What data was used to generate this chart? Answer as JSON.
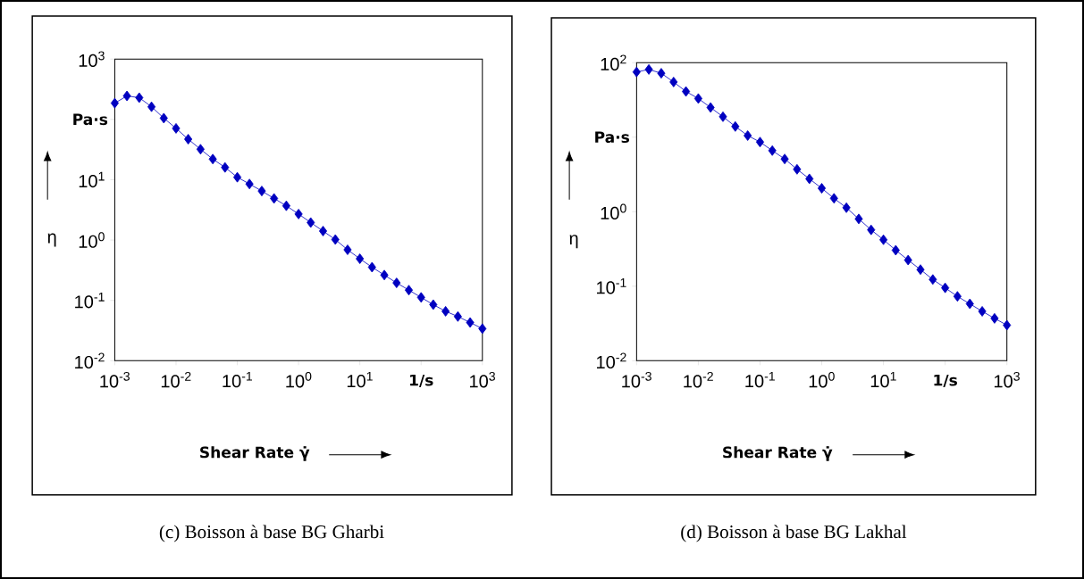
{
  "chart_data": [
    {
      "type": "line",
      "title": "(c) Boisson à base BG Gharbi",
      "xlabel": "Shear Rate γ̇",
      "ylabel": "η",
      "log": "xy",
      "marker": "diamond",
      "color": "#0000c0",
      "x": [
        0.001,
        0.00158,
        0.00251,
        0.00398,
        0.00631,
        0.01,
        0.0158,
        0.0251,
        0.0398,
        0.0631,
        0.1,
        0.158,
        0.251,
        0.398,
        0.631,
        1,
        1.58,
        2.51,
        3.98,
        6.31,
        10,
        15.8,
        25.1,
        39.8,
        63.1,
        100,
        158,
        251,
        398,
        631,
        1000
      ],
      "values": [
        186,
        245,
        229,
        162,
        105,
        71,
        47,
        32,
        22,
        16,
        11,
        8.5,
        6.5,
        4.9,
        3.7,
        2.7,
        1.95,
        1.41,
        1.02,
        0.69,
        0.49,
        0.355,
        0.263,
        0.195,
        0.148,
        0.112,
        0.085,
        0.066,
        0.054,
        0.043,
        0.034
      ],
      "xlim": [
        0.001,
        1000
      ],
      "ylim": [
        0.01,
        1000
      ],
      "annotations": [
        "1/s",
        "Pa·s"
      ],
      "xticks": [
        {
          "value": 0.001,
          "label": "10$^{-3}$"
        },
        {
          "value": 0.01,
          "label": "10$^{-2}$"
        },
        {
          "value": 0.1,
          "label": "10$^{-1}$"
        },
        {
          "value": 1,
          "label": "10$^{0}$"
        },
        {
          "value": 10,
          "label": "10$^{1}$"
        },
        {
          "value": 100,
          "label": null
        },
        {
          "value": 1000,
          "label": "10$^{3}$"
        }
      ],
      "yticks": [
        {
          "value": 0.01,
          "label": "10$^{-2}$"
        },
        {
          "value": 0.1,
          "label": "10$^{-1}$"
        },
        {
          "value": 1,
          "label": "10$^{0}$"
        },
        {
          "value": 10,
          "label": "10$^{1}$"
        },
        {
          "value": 100,
          "label": null
        },
        {
          "value": 1000,
          "label": "10$^{3}$"
        }
      ]
    },
    {
      "type": "line",
      "title": "(d) Boisson à base BG Lakhal",
      "xlabel": "Shear Rate γ̇",
      "ylabel": "η",
      "log": "xy",
      "marker": "diamond",
      "color": "#0000c0",
      "x": [
        0.001,
        0.00158,
        0.00251,
        0.00398,
        0.00631,
        0.01,
        0.0158,
        0.0251,
        0.0398,
        0.0631,
        0.1,
        0.158,
        0.251,
        0.398,
        0.631,
        1,
        1.58,
        2.51,
        3.98,
        6.31,
        10,
        15.8,
        25.1,
        39.8,
        63.1,
        100,
        158,
        251,
        398,
        631,
        1000
      ],
      "values": [
        75,
        81,
        72,
        55,
        41,
        33,
        25,
        18.8,
        13.9,
        10.5,
        8.6,
        6.6,
        5.1,
        3.7,
        2.76,
        2.06,
        1.51,
        1.13,
        0.8,
        0.57,
        0.42,
        0.304,
        0.224,
        0.167,
        0.123,
        0.095,
        0.073,
        0.058,
        0.046,
        0.037,
        0.03
      ],
      "xlim": [
        0.001,
        1000
      ],
      "ylim": [
        0.01,
        100
      ],
      "annotations": [
        "1/s",
        "Pa·s"
      ],
      "xticks": [
        {
          "value": 0.001,
          "label": "10$^{-3}$"
        },
        {
          "value": 0.01,
          "label": "10$^{-2}$"
        },
        {
          "value": 0.1,
          "label": "10$^{-1}$"
        },
        {
          "value": 1,
          "label": "10$^{0}$"
        },
        {
          "value": 10,
          "label": "10$^{1}$"
        },
        {
          "value": 100,
          "label": null
        },
        {
          "value": 1000,
          "label": "10$^{3}$"
        }
      ],
      "yticks": [
        {
          "value": 0.01,
          "label": "10$^{-2}$"
        },
        {
          "value": 0.1,
          "label": "10$^{-1}$"
        },
        {
          "value": 1,
          "label": "10$^{0}$"
        },
        {
          "value": 10,
          "label": null
        },
        {
          "value": 100,
          "label": "10$^{2}$"
        }
      ]
    }
  ]
}
